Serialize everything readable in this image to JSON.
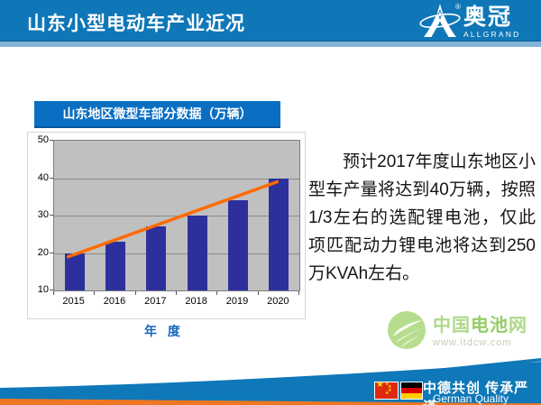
{
  "header": {
    "title": "山东小型电动车产业近况",
    "logo": {
      "brand_cn": "奥冠",
      "brand_en": "ALLGRAND",
      "registered": "®"
    }
  },
  "chart_data": {
    "type": "bar",
    "title": "山东地区微型车部分数据（万辆）",
    "categories": [
      "2015",
      "2016",
      "2017",
      "2018",
      "2019",
      "2020"
    ],
    "values": [
      20,
      23,
      27,
      30,
      34,
      40
    ],
    "xlabel": "年 度",
    "ylabel": "",
    "ylim": [
      10,
      50
    ],
    "yticks": [
      10,
      20,
      30,
      40,
      50
    ],
    "grid": true,
    "legend": false,
    "bar_color": "#2d309c",
    "plot_bg": "#c0c0c0",
    "trendline": {
      "start_value": 19,
      "end_value": 39,
      "color": "#ff6a00"
    }
  },
  "body": {
    "paragraph": "预计2017年度山东地区小型车产量将达到40万辆，按照1/3左右的选配锂电池，仅此项匹配动力锂电池将达到250万KVAh左右。"
  },
  "watermark": {
    "name_left": "中国",
    "name_mid": "电池",
    "name_right": "网",
    "url": "www.itdcw.com"
  },
  "footer": {
    "slogan_cn": "中德共创  传承严谨",
    "slogan_en": "German Quality"
  },
  "colors": {
    "header_blue": "#0f77b7",
    "title_box_blue": "#0a6fc2",
    "bar_navy": "#2d309c",
    "trend_orange": "#ff6a00",
    "footer_orange": "#ef7622",
    "logo_green": "#9ccf6d"
  }
}
